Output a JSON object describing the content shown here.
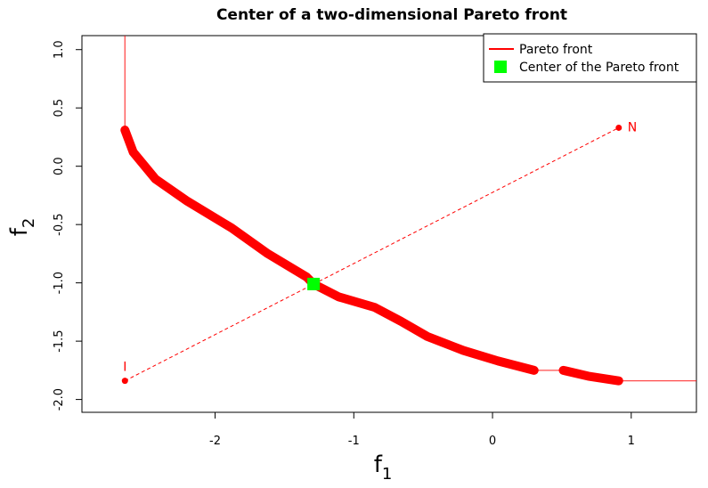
{
  "chart_data": {
    "type": "line",
    "title": "Center of a two-dimensional Pareto front",
    "xlabel": "f",
    "xlabel_sub": "1",
    "ylabel": "f",
    "ylabel_sub": "2",
    "xlim": [
      -2.96,
      1.47
    ],
    "ylim": [
      -2.11,
      1.12
    ],
    "xticks": [
      -2,
      -1,
      0,
      1
    ],
    "yticks": [
      {
        "value": -2,
        "label": "-2.0"
      },
      {
        "value": -1.5,
        "label": "-1.5"
      },
      {
        "value": -1,
        "label": "-1.0"
      },
      {
        "value": -0.5,
        "label": "-0.5"
      },
      {
        "value": 0,
        "label": "0.0"
      },
      {
        "value": 0.5,
        "label": "0.5"
      },
      {
        "value": 1,
        "label": "1.0"
      }
    ],
    "series": [
      {
        "name": "Pareto front",
        "color": "#ff0000",
        "style": "line",
        "x": [
          -2.65,
          -2.65,
          -2.59,
          -2.43,
          -2.2,
          -1.88,
          -1.62,
          -1.34,
          -1.29,
          -1.11,
          -0.85,
          -0.66,
          -0.47,
          -0.21,
          0.04,
          0.3,
          0.51,
          0.69,
          0.91,
          1.47
        ],
        "values": [
          1.12,
          0.31,
          0.12,
          -0.11,
          -0.3,
          -0.53,
          -0.75,
          -0.95,
          -1.01,
          -1.12,
          -1.21,
          -1.33,
          -1.46,
          -1.58,
          -1.67,
          -1.75,
          -1.75,
          -1.8,
          -1.84,
          -1.84
        ]
      },
      {
        "color": "#ff0000",
        "style": "points",
        "x": [
          -2.65,
          -2.59,
          -2.43,
          -2.2,
          -1.88,
          -1.62,
          -1.34,
          -1.29,
          -1.11,
          -0.85,
          -0.66,
          -0.47,
          -0.21,
          0.04,
          0.3,
          null,
          0.51,
          0.69,
          0.91
        ],
        "values": [
          0.31,
          0.12,
          -0.11,
          -0.3,
          -0.53,
          -0.75,
          -0.95,
          -1.01,
          -1.12,
          -1.21,
          -1.33,
          -1.46,
          -1.58,
          -1.67,
          -1.75,
          null,
          -1.75,
          -1.8,
          -1.84
        ]
      },
      {
        "name": "Center of the Pareto front",
        "color": "#00ff00",
        "style": "square",
        "x": [
          -1.29
        ],
        "values": [
          -1.01
        ]
      }
    ],
    "annotations": [
      {
        "text": "I",
        "x": -2.65,
        "y": -1.84
      },
      {
        "text": "N",
        "x": 0.91,
        "y": 0.33
      }
    ],
    "legend": "top-right"
  }
}
